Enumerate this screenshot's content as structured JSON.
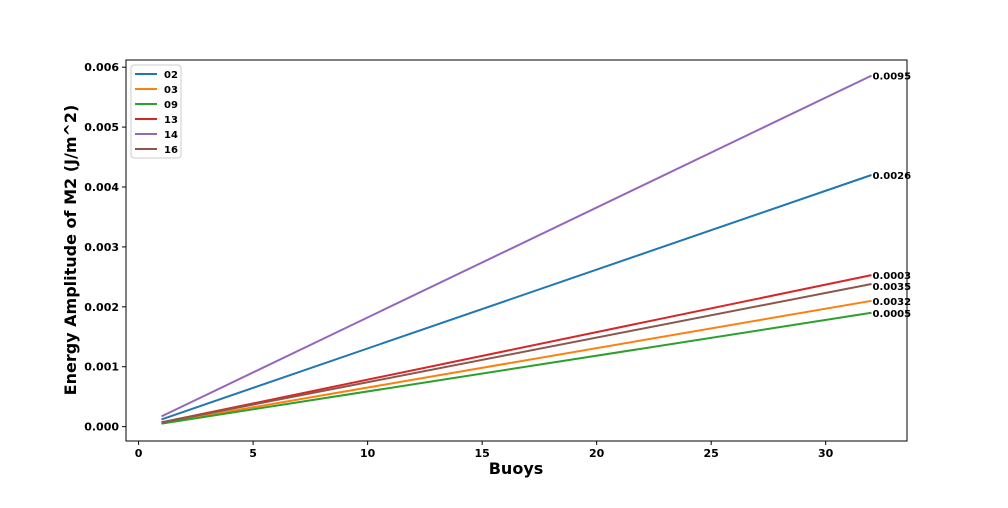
{
  "chart_data": {
    "type": "line",
    "xlabel": "Buoys",
    "ylabel": "Energy Amplitude of M2 (J/m^2)",
    "xlim": [
      -0.55,
      33.55
    ],
    "ylim": [
      -0.00024,
      0.00612
    ],
    "xticks": [
      0,
      5,
      10,
      15,
      20,
      25,
      30
    ],
    "yticks": [
      0.0,
      0.001,
      0.002,
      0.003,
      0.004,
      0.005,
      0.006
    ],
    "ytick_labels": [
      "0.000",
      "0.001",
      "0.002",
      "0.003",
      "0.004",
      "0.005",
      "0.006"
    ],
    "grid": false,
    "legend_position": "upper-left",
    "series": [
      {
        "name": "02",
        "color": "#1f77b4",
        "x": [
          1,
          32
        ],
        "y": [
          0.00012,
          0.0042
        ],
        "end_label": "0.0026"
      },
      {
        "name": "03",
        "color": "#ff7f0e",
        "x": [
          1,
          32
        ],
        "y": [
          6e-05,
          0.0021
        ],
        "end_label": "0.0032"
      },
      {
        "name": "09",
        "color": "#2ca02c",
        "x": [
          1,
          32
        ],
        "y": [
          5e-05,
          0.0019
        ],
        "end_label": "0.0005"
      },
      {
        "name": "13",
        "color": "#d62728",
        "x": [
          1,
          32
        ],
        "y": [
          7e-05,
          0.00253
        ],
        "end_label": "0.0003"
      },
      {
        "name": "14",
        "color": "#9467bd",
        "x": [
          1,
          32
        ],
        "y": [
          0.00017,
          0.00586
        ],
        "end_label": "0.0095"
      },
      {
        "name": "16",
        "color": "#8c564b",
        "x": [
          1,
          32
        ],
        "y": [
          7e-05,
          0.00238
        ],
        "end_label": "0.0035"
      }
    ]
  }
}
